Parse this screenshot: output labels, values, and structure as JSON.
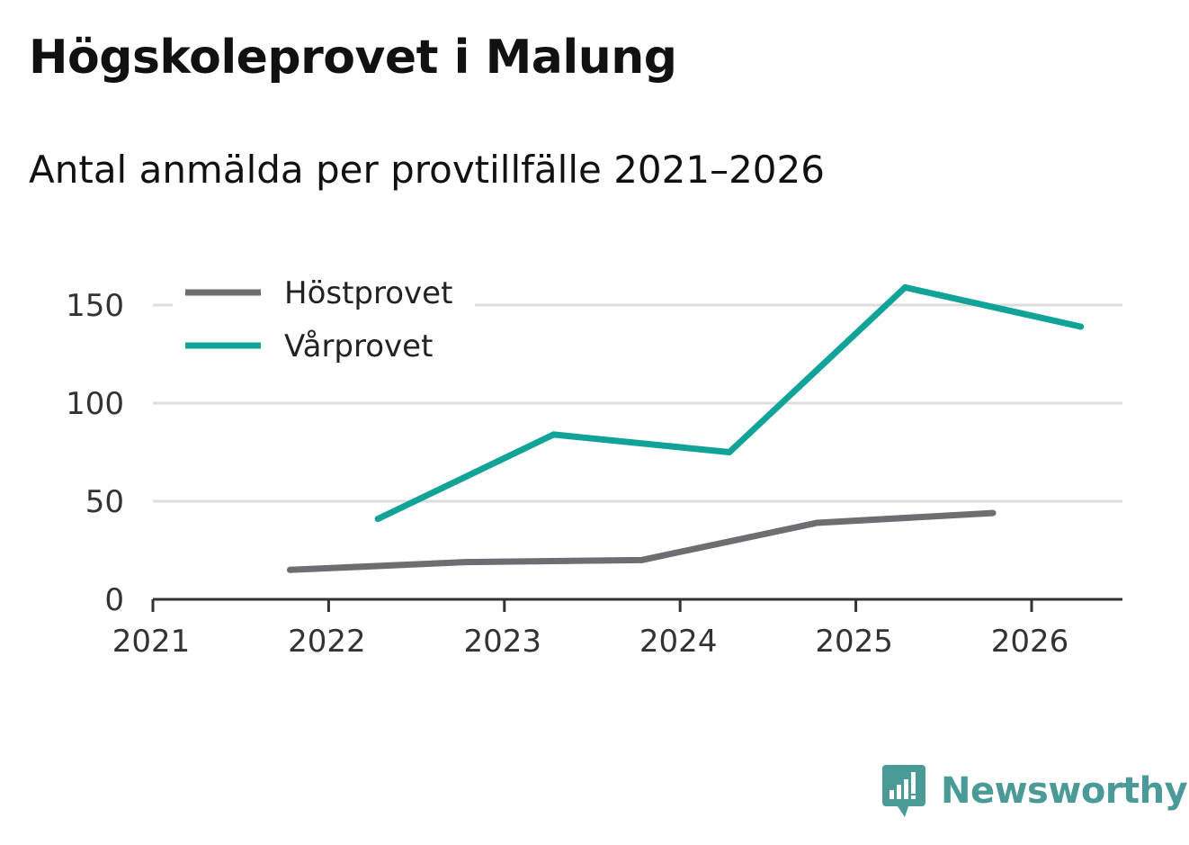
{
  "header": {
    "title": "Högskoleprovet i Malung",
    "subtitle": "Antal anmälda per provtillfälle 2021–2026"
  },
  "brand": {
    "name": "Newsworthy",
    "icon": "newsworthy-logo-icon",
    "color": "#4a9a97"
  },
  "colors": {
    "hostprovet": "#6e6d72",
    "varprovet": "#11a398",
    "grid": "#dddddd",
    "axis": "#333333"
  },
  "chart_data": {
    "type": "line",
    "title": "Högskoleprovet i Malung",
    "subtitle": "Antal anmälda per provtillfälle 2021–2026",
    "xlabel": "",
    "ylabel": "",
    "xlim": [
      2021,
      2026.5
    ],
    "ylim": [
      0,
      160
    ],
    "x_ticks": [
      2021,
      2022,
      2023,
      2024,
      2025,
      2026
    ],
    "x_tick_labels": [
      "2021",
      "2022",
      "2023",
      "2024",
      "2025",
      "2026"
    ],
    "y_ticks": [
      0,
      50,
      100,
      150
    ],
    "y_tick_labels": [
      "0",
      "50",
      "100",
      "150"
    ],
    "grid": true,
    "legend_position": "top-left",
    "series": [
      {
        "name": "Höstprovet",
        "color": "#6e6d72",
        "x": [
          2021.78,
          2022.78,
          2023.78,
          2024.78,
          2025.78
        ],
        "y": [
          15,
          19,
          20,
          39,
          44
        ]
      },
      {
        "name": "Vårprovet",
        "color": "#11a398",
        "x": [
          2022.28,
          2023.28,
          2024.28,
          2025.28,
          2026.28
        ],
        "y": [
          41,
          84,
          75,
          159,
          139
        ]
      }
    ]
  }
}
